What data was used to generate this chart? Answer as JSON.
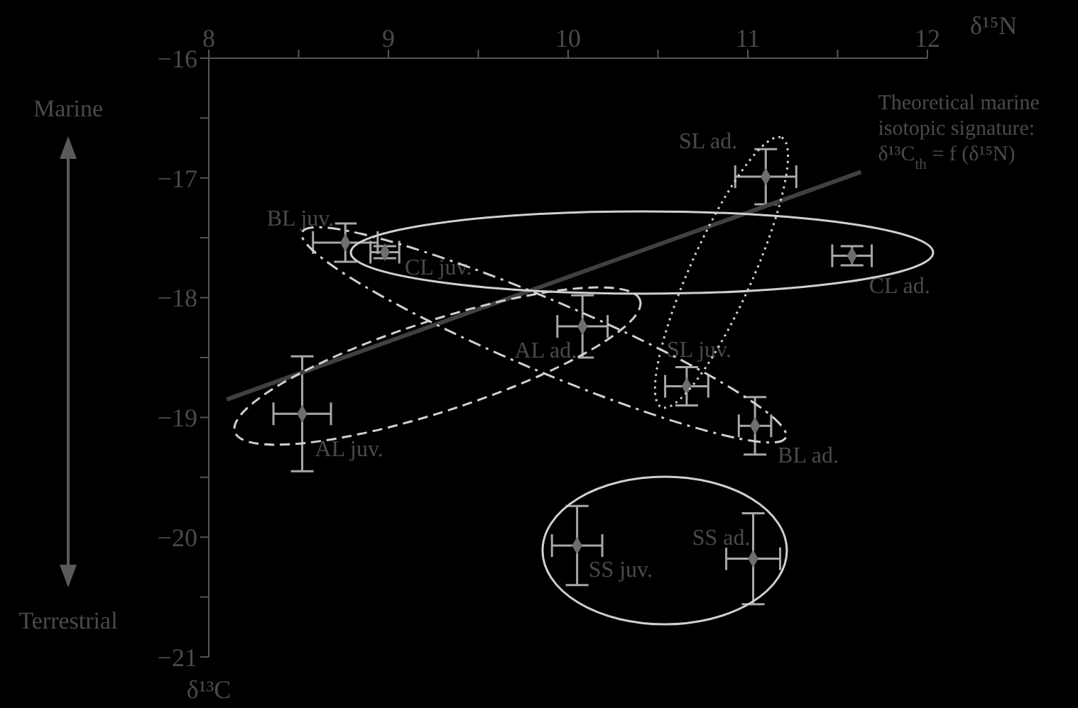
{
  "chart_data": {
    "type": "scatter",
    "xlabel": "δ¹⁵N",
    "ylabel": "δ¹³C",
    "marker": "diamond",
    "xlim": [
      8,
      12
    ],
    "ylim": [
      -21,
      -16
    ],
    "xticks": [
      8,
      {
        "value": 8.5,
        "label": null
      },
      9,
      {
        "value": 9.5,
        "label": null
      },
      10,
      {
        "value": 10.5,
        "label": null
      },
      11,
      {
        "value": 11.5,
        "label": null
      },
      12
    ],
    "yticks": [
      {
        "value": -16,
        "label": "−16"
      },
      {
        "value": -16.5,
        "label": null
      },
      {
        "value": -17,
        "label": "−17"
      },
      {
        "value": -17.5,
        "label": null
      },
      {
        "value": -18,
        "label": "−18"
      },
      {
        "value": -18.5,
        "label": null
      },
      {
        "value": -19,
        "label": "−19"
      },
      {
        "value": -19.5,
        "label": null
      },
      {
        "value": -20,
        "label": "−20"
      },
      {
        "value": -20.5,
        "label": null
      },
      {
        "value": -21,
        "label": "−21"
      }
    ],
    "series": [
      {
        "name": "BL juv.",
        "color": "#6e6e6e",
        "x": [
          8.76
        ],
        "values": [
          -17.54
        ],
        "xerrors": [
          0.18
        ],
        "errors": [
          0.16
        ]
      },
      {
        "name": "CL juv.",
        "color": "#6e6e6e",
        "x": [
          8.98
        ],
        "values": [
          -17.62
        ],
        "xerrors": [
          0.08
        ],
        "errors": [
          0.05
        ]
      },
      {
        "name": "AL ad.",
        "color": "#6e6e6e",
        "x": [
          10.08
        ],
        "values": [
          -18.24
        ],
        "xerrors": [
          0.14
        ],
        "errors": [
          0.26
        ]
      },
      {
        "name": "SL juv.",
        "color": "#6e6e6e",
        "x": [
          10.66
        ],
        "values": [
          -18.74
        ],
        "xerrors": [
          0.12
        ],
        "errors": [
          0.16
        ]
      },
      {
        "name": "BL ad.",
        "color": "#6e6e6e",
        "x": [
          11.04
        ],
        "values": [
          -19.07
        ],
        "xerrors": [
          0.09
        ],
        "errors": [
          0.24
        ]
      },
      {
        "name": "AL juv.",
        "color": "#6e6e6e",
        "x": [
          8.52
        ],
        "values": [
          -18.97
        ],
        "xerrors": [
          0.16
        ],
        "errors": [
          0.48
        ]
      },
      {
        "name": "SL ad.",
        "color": "#6e6e6e",
        "x": [
          11.1
        ],
        "values": [
          -16.99
        ],
        "xerrors": [
          0.17
        ],
        "errors": [
          0.23
        ]
      },
      {
        "name": "CL ad.",
        "color": "#6e6e6e",
        "x": [
          11.58
        ],
        "values": [
          -17.65
        ],
        "xerrors": [
          0.11
        ],
        "errors": [
          0.08
        ]
      },
      {
        "name": "SS juv.",
        "color": "#6e6e6e",
        "x": [
          10.05
        ],
        "values": [
          -20.07
        ],
        "xerrors": [
          0.14
        ],
        "errors": [
          0.33
        ]
      },
      {
        "name": "SS ad.",
        "color": "#6e6e6e",
        "x": [
          11.03
        ],
        "values": [
          -20.18
        ],
        "xerrors": [
          0.15
        ],
        "errors": [
          0.38
        ]
      },
      {
        "name": "Theoretical marine isotopic signature: δ¹³C$_{th}$ = f (δ¹⁵N)",
        "type": "line",
        "marker": "none",
        "color": "#404040",
        "x": [
          8.1,
          11.63
        ],
        "values": [
          -18.85,
          -16.95
        ]
      }
    ],
    "annotations": [
      "Marine",
      "Terrestrial"
    ]
  }
}
